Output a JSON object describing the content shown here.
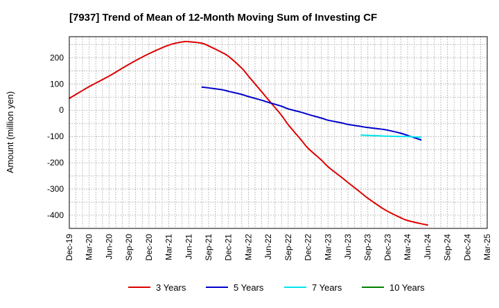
{
  "chart_data": {
    "type": "line",
    "title": "[7937]  Trend of Mean of 12-Month Moving Sum of Investing CF",
    "xlabel": "",
    "ylabel": "Amount (million yen)",
    "ylim": [
      -450,
      280
    ],
    "yticks": [
      200,
      100,
      0,
      -100,
      -200,
      -300,
      -400
    ],
    "ytick_labels": [
      "200",
      "100",
      "0",
      "-100",
      "-200",
      "-300",
      "-400"
    ],
    "categories": [
      "Dec-19",
      "Mar-20",
      "Jun-20",
      "Sep-20",
      "Dec-20",
      "Mar-21",
      "Jun-21",
      "Sep-21",
      "Dec-21",
      "Mar-22",
      "Jun-22",
      "Sep-22",
      "Dec-22",
      "Mar-23",
      "Jun-23",
      "Sep-23",
      "Dec-23",
      "Mar-24",
      "Jun-24",
      "Sep-24",
      "Dec-24",
      "Mar-25"
    ],
    "grid": true,
    "legend_position": "bottom",
    "series": [
      {
        "name": "3 Years",
        "color": "#dd0000",
        "points": [
          [
            0,
            45
          ],
          [
            1,
            90
          ],
          [
            2,
            130
          ],
          [
            3,
            175
          ],
          [
            4,
            215
          ],
          [
            5,
            248
          ],
          [
            5.67,
            260
          ],
          [
            6,
            261
          ],
          [
            6.67,
            255
          ],
          [
            7,
            245
          ],
          [
            7.67,
            220
          ],
          [
            8,
            205
          ],
          [
            8.67,
            160
          ],
          [
            9,
            130
          ],
          [
            9.67,
            70
          ],
          [
            10,
            40
          ],
          [
            10.67,
            -20
          ],
          [
            11,
            -55
          ],
          [
            11.67,
            -115
          ],
          [
            12,
            -145
          ],
          [
            12.67,
            -190
          ],
          [
            13,
            -215
          ],
          [
            13.67,
            -255
          ],
          [
            14,
            -275
          ],
          [
            14.67,
            -315
          ],
          [
            15,
            -335
          ],
          [
            15.67,
            -370
          ],
          [
            16,
            -385
          ],
          [
            16.67,
            -410
          ],
          [
            17,
            -420
          ],
          [
            17.67,
            -432
          ],
          [
            18,
            -437
          ]
        ]
      },
      {
        "name": "5 Years",
        "color": "#0000cc",
        "points": [
          [
            6.67,
            88
          ],
          [
            7,
            85
          ],
          [
            7.67,
            78
          ],
          [
            8,
            72
          ],
          [
            8.67,
            60
          ],
          [
            9,
            52
          ],
          [
            9.67,
            38
          ],
          [
            10,
            30
          ],
          [
            10.67,
            15
          ],
          [
            11,
            5
          ],
          [
            11.67,
            -8
          ],
          [
            12,
            -16
          ],
          [
            12.67,
            -30
          ],
          [
            13,
            -38
          ],
          [
            13.67,
            -48
          ],
          [
            14,
            -54
          ],
          [
            14.67,
            -62
          ],
          [
            15,
            -66
          ],
          [
            15.67,
            -72
          ],
          [
            16,
            -76
          ],
          [
            16.67,
            -88
          ],
          [
            17,
            -96
          ],
          [
            17.67,
            -113
          ]
        ]
      },
      {
        "name": "7 Years",
        "color": "#00e5ee",
        "points": [
          [
            14.67,
            -95
          ],
          [
            15,
            -96
          ],
          [
            15.67,
            -98
          ],
          [
            16,
            -99
          ],
          [
            16.67,
            -100
          ],
          [
            17,
            -100
          ],
          [
            17.67,
            -103
          ]
        ]
      },
      {
        "name": "10 Years",
        "color": "#008000",
        "points": []
      }
    ]
  }
}
